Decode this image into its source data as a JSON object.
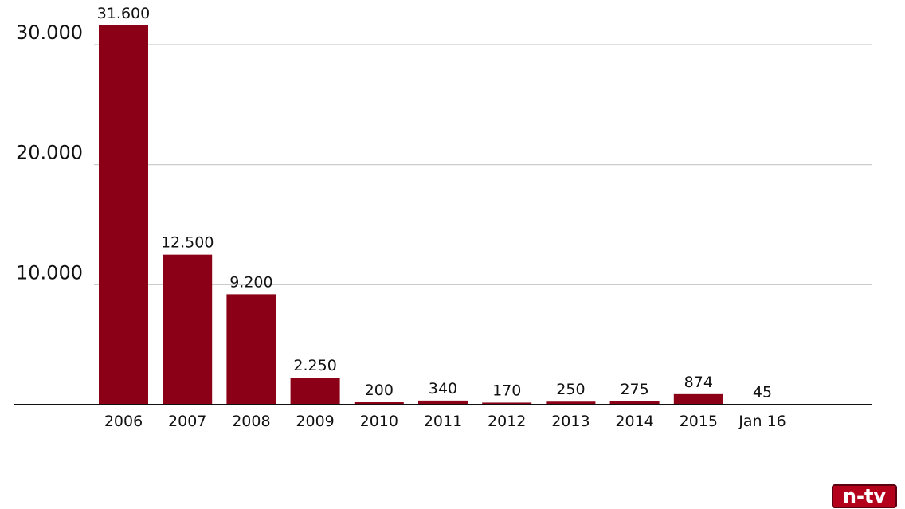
{
  "chart_data": {
    "type": "bar",
    "categories": [
      "2006",
      "2007",
      "2008",
      "2009",
      "2010",
      "2011",
      "2012",
      "2013",
      "2014",
      "2015",
      "Jan 16"
    ],
    "values": [
      31600,
      12500,
      9200,
      2250,
      200,
      340,
      170,
      250,
      275,
      874,
      45
    ],
    "value_labels": [
      "31.600",
      "12.500",
      "9.200",
      "2.250",
      "200",
      "340",
      "170",
      "250",
      "275",
      "874",
      "45"
    ],
    "y_ticks": [
      10000,
      20000,
      30000
    ],
    "y_tick_labels": [
      "10.000",
      "20.000",
      "30.000"
    ],
    "ylim": [
      0,
      32000
    ],
    "grid": true,
    "bar_color": "#8b0016",
    "grid_color": "#cccccc",
    "axis_color": "#111111",
    "title": "",
    "xlabel": "",
    "ylabel": ""
  },
  "branding": {
    "logo_text": "n-tv",
    "logo_color": "#b3001b"
  }
}
